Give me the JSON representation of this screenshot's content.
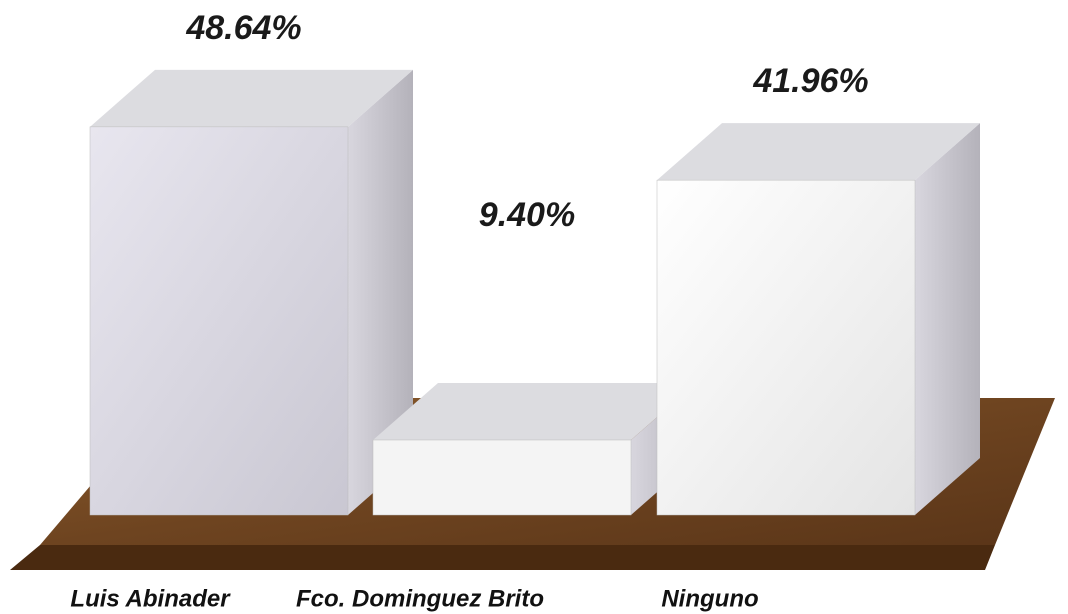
{
  "chart_data": {
    "type": "bar3d",
    "categories": [
      "Luis Abinader",
      "Fco. Dominguez Brito",
      "Ninguno"
    ],
    "values": [
      48.64,
      9.4,
      41.96
    ],
    "value_labels": [
      "48.64%",
      "9.40%",
      "41.96%"
    ]
  }
}
